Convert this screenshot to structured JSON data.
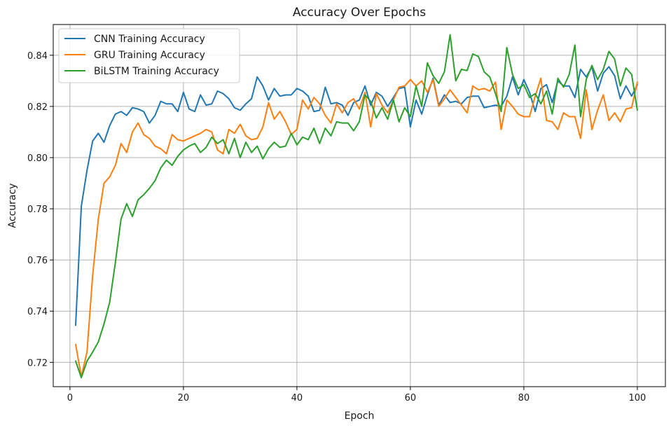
{
  "chart_data": {
    "type": "line",
    "title": "Accuracy Over Epochs",
    "xlabel": "Epoch",
    "ylabel": "Accuracy",
    "xlim": [
      -2.95,
      104.95
    ],
    "ylim": [
      0.7105,
      0.852
    ],
    "xticks": [
      0,
      20,
      40,
      60,
      80,
      100
    ],
    "yticks": [
      0.72,
      0.74,
      0.76,
      0.78,
      0.8,
      0.82,
      0.84
    ],
    "ytick_labels": [
      "0.72",
      "0.74",
      "0.76",
      "0.78",
      "0.80",
      "0.82",
      "0.84"
    ],
    "grid": true,
    "legend_position": "upper-left",
    "x_start": 1,
    "series": [
      {
        "name": "CNN Training Accuracy",
        "color": "#1f77b4",
        "values": [
          0.7345,
          0.781,
          0.795,
          0.8065,
          0.8095,
          0.806,
          0.8125,
          0.817,
          0.818,
          0.8165,
          0.8195,
          0.819,
          0.818,
          0.8135,
          0.8165,
          0.822,
          0.821,
          0.821,
          0.818,
          0.8255,
          0.819,
          0.818,
          0.8245,
          0.8205,
          0.821,
          0.826,
          0.825,
          0.823,
          0.8195,
          0.8185,
          0.821,
          0.823,
          0.8315,
          0.828,
          0.8225,
          0.827,
          0.824,
          0.8245,
          0.8245,
          0.827,
          0.826,
          0.824,
          0.818,
          0.8185,
          0.8275,
          0.821,
          0.8215,
          0.8205,
          0.8165,
          0.8215,
          0.8225,
          0.828,
          0.8205,
          0.8255,
          0.824,
          0.82,
          0.8235,
          0.827,
          0.8275,
          0.812,
          0.8225,
          0.817,
          0.8245,
          0.831,
          0.8205,
          0.8245,
          0.8215,
          0.822,
          0.821,
          0.8235,
          0.824,
          0.824,
          0.8195,
          0.82,
          0.8205,
          0.82,
          0.824,
          0.8315,
          0.8245,
          0.8305,
          0.8255,
          0.818,
          0.827,
          0.8285,
          0.8215,
          0.83,
          0.828,
          0.828,
          0.8235,
          0.8345,
          0.8315,
          0.8355,
          0.826,
          0.833,
          0.8355,
          0.832,
          0.823,
          0.828,
          0.824,
          0.8285
        ]
      },
      {
        "name": "GRU Training Accuracy",
        "color": "#ff7f0e",
        "values": [
          0.727,
          0.7145,
          0.724,
          0.754,
          0.776,
          0.79,
          0.7925,
          0.797,
          0.8055,
          0.802,
          0.81,
          0.8135,
          0.809,
          0.8075,
          0.8045,
          0.8035,
          0.8015,
          0.809,
          0.807,
          0.8065,
          0.8075,
          0.8085,
          0.8095,
          0.811,
          0.81,
          0.803,
          0.8015,
          0.811,
          0.8095,
          0.813,
          0.8085,
          0.807,
          0.8075,
          0.812,
          0.8215,
          0.815,
          0.818,
          0.814,
          0.809,
          0.811,
          0.8225,
          0.819,
          0.8235,
          0.821,
          0.8165,
          0.8135,
          0.821,
          0.8175,
          0.8215,
          0.823,
          0.819,
          0.8255,
          0.812,
          0.825,
          0.8205,
          0.8175,
          0.8225,
          0.8275,
          0.828,
          0.8305,
          0.828,
          0.83,
          0.8255,
          0.8305,
          0.82,
          0.823,
          0.8265,
          0.8235,
          0.8205,
          0.8175,
          0.828,
          0.8265,
          0.827,
          0.826,
          0.8295,
          0.811,
          0.8225,
          0.82,
          0.817,
          0.816,
          0.816,
          0.824,
          0.831,
          0.8145,
          0.814,
          0.811,
          0.8175,
          0.816,
          0.816,
          0.8075,
          0.8265,
          0.811,
          0.8185,
          0.8245,
          0.8145,
          0.8175,
          0.814,
          0.819,
          0.8195,
          0.8295
        ]
      },
      {
        "name": "BiLSTM Training Accuracy",
        "color": "#2ca02c",
        "values": [
          0.7205,
          0.714,
          0.7205,
          0.724,
          0.728,
          0.735,
          0.7435,
          0.759,
          0.776,
          0.782,
          0.777,
          0.7835,
          0.7855,
          0.788,
          0.791,
          0.796,
          0.799,
          0.797,
          0.8005,
          0.803,
          0.8045,
          0.8055,
          0.802,
          0.804,
          0.808,
          0.8055,
          0.807,
          0.8015,
          0.8075,
          0.8,
          0.806,
          0.802,
          0.8045,
          0.7995,
          0.8035,
          0.806,
          0.804,
          0.8045,
          0.8095,
          0.805,
          0.808,
          0.807,
          0.8115,
          0.8055,
          0.8115,
          0.8085,
          0.814,
          0.8135,
          0.8135,
          0.8105,
          0.814,
          0.8245,
          0.822,
          0.8155,
          0.8195,
          0.815,
          0.8225,
          0.814,
          0.8195,
          0.816,
          0.828,
          0.82,
          0.837,
          0.832,
          0.829,
          0.8335,
          0.848,
          0.83,
          0.8345,
          0.834,
          0.8405,
          0.8395,
          0.8335,
          0.8315,
          0.825,
          0.818,
          0.843,
          0.8325,
          0.827,
          0.8285,
          0.8235,
          0.825,
          0.821,
          0.826,
          0.817,
          0.831,
          0.8275,
          0.8325,
          0.844,
          0.816,
          0.8305,
          0.836,
          0.8305,
          0.8345,
          0.8415,
          0.8385,
          0.828,
          0.835,
          0.8325,
          0.8185
        ]
      }
    ]
  }
}
